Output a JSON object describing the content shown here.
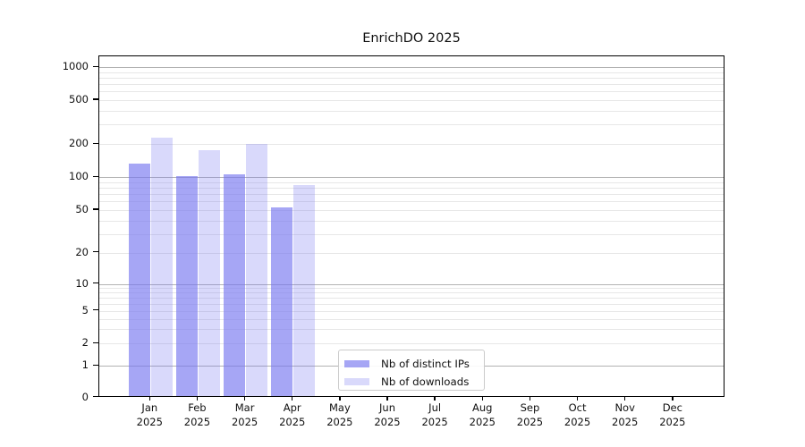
{
  "chart_data": {
    "type": "bar",
    "title": "EnrichDO 2025",
    "categories": [
      "Jan 2025",
      "Feb 2025",
      "Mar 2025",
      "Apr 2025",
      "May 2025",
      "Jun 2025",
      "Jul 2025",
      "Aug 2025",
      "Sep 2025",
      "Oct 2025",
      "Nov 2025",
      "Dec 2025"
    ],
    "series": [
      {
        "name": "Nb of distinct IPs",
        "color": "rgba(118,118,240,0.65)",
        "values": [
          133,
          102,
          107,
          53,
          null,
          null,
          null,
          null,
          null,
          null,
          null,
          null
        ]
      },
      {
        "name": "Nb of downloads",
        "color": "rgba(118,118,240,0.28)",
        "values": [
          230,
          178,
          200,
          85,
          null,
          null,
          null,
          null,
          null,
          null,
          null,
          null
        ]
      }
    ],
    "yscale": "asinh",
    "y_ticks": [
      0,
      1,
      2,
      5,
      10,
      20,
      50,
      100,
      200,
      500,
      1000
    ],
    "ylim": [
      0,
      1300
    ],
    "xlabel": "",
    "ylabel": "",
    "grid": {
      "orientation": "horizontal",
      "major_lines_at": [
        1,
        10,
        100,
        1000
      ],
      "minor_multiples_per_decade": [
        2,
        3,
        4,
        5,
        6,
        7,
        8,
        9
      ]
    },
    "legend_position": "lower center"
  },
  "colors": {
    "bar_base": "#7676f0",
    "major_grid": "#b2b2b2",
    "minor_grid": "#e7e7e7",
    "axis": "#000000",
    "background": "#ffffff"
  }
}
